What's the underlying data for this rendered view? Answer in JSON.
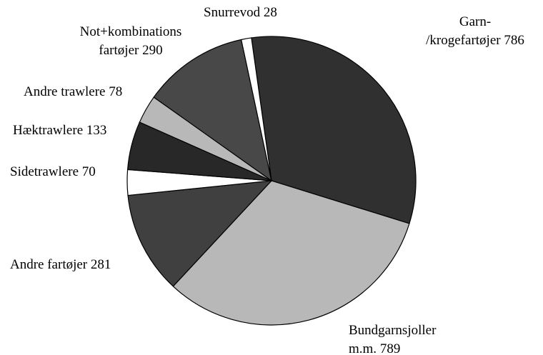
{
  "chart_data": {
    "type": "pie",
    "categories": [
      "Garn-\n/krogefartøjer",
      "Bundgarnsjoller\nm.m.",
      "Andre fartøjer",
      "Sidetrawlere",
      "Hæktrawlere",
      "Andre trawlere",
      "Not+kombinations\nfartøjer",
      "Snurrevod"
    ],
    "values": [
      786,
      789,
      281,
      70,
      133,
      78,
      290,
      28
    ],
    "colors": [
      "#303030",
      "#b8b8b8",
      "#404040",
      "#ffffff",
      "#282828",
      "#b8b8b8",
      "#484848",
      "#ffffff"
    ]
  }
}
